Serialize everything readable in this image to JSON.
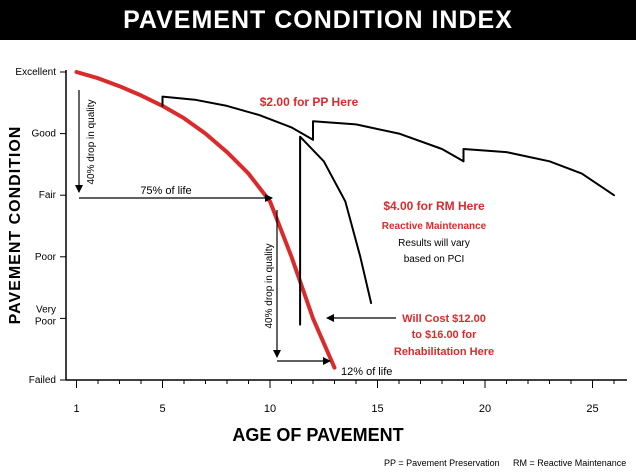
{
  "chart_data": {
    "type": "line",
    "title": "PAVEMENT CONDITION INDEX",
    "xlabel": "AGE OF PAVEMENT",
    "ylabel": "PAVEMENT CONDITION",
    "xlim": [
      0.5,
      26.5
    ],
    "ylim": [
      0,
      5
    ],
    "x_ticks": [
      1,
      5,
      10,
      15,
      20,
      25
    ],
    "y_ticks": [
      {
        "value": 5,
        "label": "Excellent"
      },
      {
        "value": 4,
        "label": "Good"
      },
      {
        "value": 3,
        "label": "Fair"
      },
      {
        "value": 2,
        "label": "Poor"
      },
      {
        "value": 1,
        "label": "Very Poor"
      },
      {
        "value": 0,
        "label": "Failed"
      }
    ],
    "grid": false,
    "series": [
      {
        "color": "#d92b2b",
        "points": [
          [
            1,
            5
          ],
          [
            2,
            4.9
          ],
          [
            3,
            4.77
          ],
          [
            4,
            4.62
          ],
          [
            5,
            4.45
          ],
          [
            6,
            4.25
          ],
          [
            7,
            4.0
          ],
          [
            8,
            3.7
          ],
          [
            9,
            3.35
          ],
          [
            10,
            2.9
          ],
          [
            11,
            2.0
          ],
          [
            12,
            1.0
          ],
          [
            13,
            0.2
          ]
        ]
      },
      {
        "color": "#000000",
        "points": [
          [
            5,
            4.45
          ],
          [
            5,
            4.6
          ],
          [
            6.5,
            4.55
          ],
          [
            8,
            4.45
          ],
          [
            9.5,
            4.3
          ],
          [
            11,
            4.1
          ],
          [
            12,
            3.9
          ]
        ]
      },
      {
        "color": "#000000",
        "points": [
          [
            12,
            3.9
          ],
          [
            12,
            4.2
          ],
          [
            14,
            4.15
          ],
          [
            16,
            4.0
          ],
          [
            18,
            3.75
          ],
          [
            19,
            3.55
          ]
        ]
      },
      {
        "color": "#000000",
        "points": [
          [
            19,
            3.55
          ],
          [
            19,
            3.75
          ],
          [
            21,
            3.7
          ],
          [
            23,
            3.55
          ],
          [
            24.5,
            3.35
          ],
          [
            26,
            3.0
          ]
        ]
      },
      {
        "color": "#000000",
        "points": [
          [
            11.4,
            0.9
          ],
          [
            11.4,
            3.95
          ],
          [
            12.5,
            3.55
          ],
          [
            13.5,
            2.9
          ],
          [
            14.2,
            2.0
          ],
          [
            14.7,
            1.25
          ]
        ]
      }
    ],
    "annotations": {
      "pp_cost": "$2.00 for PP Here",
      "rm_cost": "$4.00 for RM Here",
      "reactive": "Reactive Maintenance",
      "results_1": "Results will vary",
      "results_2": "based on PCI",
      "rehab_1": "Will Cost $12.00",
      "rehab_2": "to $16.00 for",
      "rehab_3": "Rehabilitation Here",
      "drop_quality_1": "40% drop in quality",
      "drop_quality_2": "40% drop in quality",
      "life_75": "75% of life",
      "life_12": "12% of life"
    },
    "footer": {
      "pp": "PP = Pavement Preservation",
      "rm": "RM = Reactive Maintenance"
    },
    "colors": {
      "accent": "#d92b2b",
      "text": "#000000"
    }
  }
}
